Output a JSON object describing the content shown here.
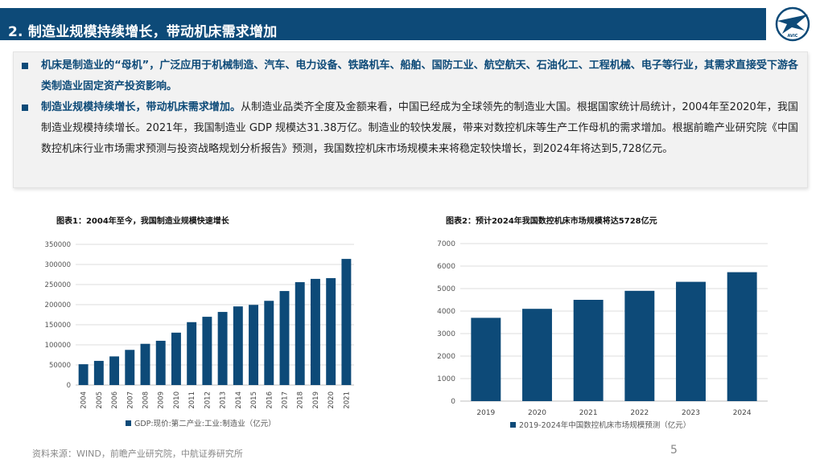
{
  "header": {
    "title": "2. 制造业规模持续增长，带动机床需求增加",
    "logo_text": "AVIC"
  },
  "text": {
    "p1": {
      "highlight": "机床是制造业的“母机”，广泛应用于机械制造、汽车、电力设备、铁路机车、船舶、国防工业、航空航天、石油化工、工程机械、电子等行业，其需求直接受下游各类制造业固定资产投资影响。",
      "rest": ""
    },
    "p2": {
      "highlight": "制造业规模持续增长，带动机床需求增加。",
      "rest": "从制造业品类齐全度及金额来看，中国已经成为全球领先的制造业大国。根据国家统计局统计，2004年至2020年，我国制造业规模持续增长。2021年，我国制造业 GDP 规模达31.38万亿。制造业的较快发展，带来对数控机床等生产工作母机的需求增加。根据前瞻产业研究院《中国数控机床行业市场需求预测与投资战略规划分析报告》预测，我国数控机床市场规模未来将稳定较快增长，到2024年将达到5,728亿元。"
    }
  },
  "chart_data": [
    {
      "type": "bar",
      "title": "图表1：2004年至今，我国制造业规模快速增长",
      "categories": [
        "2004",
        "2005",
        "2006",
        "2007",
        "2008",
        "2009",
        "2010",
        "2011",
        "2012",
        "2013",
        "2014",
        "2015",
        "2016",
        "2017",
        "2018",
        "2019",
        "2020",
        "2021"
      ],
      "values": [
        51748,
        60118,
        71213,
        87465,
        102539,
        110119,
        130325,
        156457,
        169807,
        181868,
        195620,
        199436,
        209509,
        233877,
        255937,
        264137,
        265944,
        313797
      ],
      "ylim": [
        0,
        350000
      ],
      "yticks": [
        "0",
        "50000",
        "100000",
        "150000",
        "200000",
        "250000",
        "300000",
        "350000"
      ],
      "legend": "GDP:现价:第二产业:工业:制造业（亿元）",
      "color": "#0d4a78",
      "grid": true
    },
    {
      "type": "bar",
      "title": "图表2：预计2024年我国数控机床市场规模将达5728亿元",
      "categories": [
        "2019",
        "2020",
        "2021",
        "2022",
        "2023",
        "2024"
      ],
      "values": [
        3700,
        4100,
        4500,
        4900,
        5300,
        5728
      ],
      "ylim": [
        0,
        7000
      ],
      "yticks": [
        "0",
        "1000",
        "2000",
        "3000",
        "4000",
        "5000",
        "6000",
        "7000"
      ],
      "legend": "2019-2024年中国数控机床市场规模预测（亿元）",
      "color": "#0d4a78",
      "grid": true
    }
  ],
  "footer": {
    "source": "资料来源：WIND，前瞻产业研究院，中航证券研究所",
    "page": "5"
  }
}
